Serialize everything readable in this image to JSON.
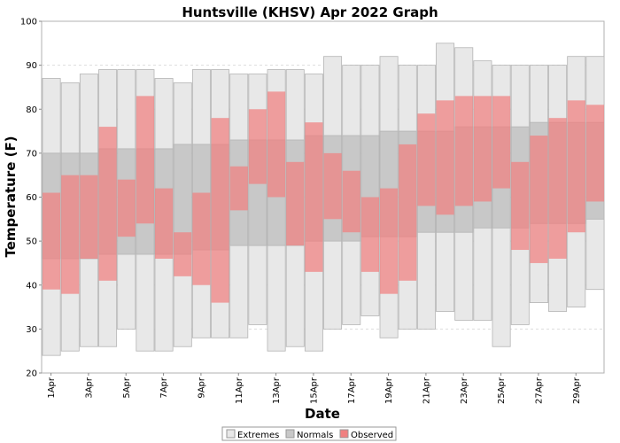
{
  "chart_data": {
    "type": "bar",
    "title": "Huntsville (KHSV) Apr 2022 Graph",
    "xlabel": "Date",
    "ylabel": "Temperature (F)",
    "ylim": [
      20,
      100
    ],
    "yticks": [
      20,
      30,
      40,
      50,
      60,
      70,
      80,
      90,
      100
    ],
    "grid": true,
    "legend_position": "bottom",
    "colors": {
      "extremes": "#e8e8e8",
      "normals": "#c8c8c8",
      "observed": "#f08080"
    },
    "dates": [
      "1Apr",
      "2Apr",
      "3Apr",
      "4Apr",
      "5Apr",
      "6Apr",
      "7Apr",
      "8Apr",
      "9Apr",
      "10Apr",
      "11Apr",
      "12Apr",
      "13Apr",
      "14Apr",
      "15Apr",
      "16Apr",
      "17Apr",
      "18Apr",
      "19Apr",
      "20Apr",
      "21Apr",
      "22Apr",
      "23Apr",
      "24Apr",
      "25Apr",
      "26Apr",
      "27Apr",
      "28Apr",
      "29Apr",
      "30Apr"
    ],
    "tick_labels": [
      "1Apr",
      "3Apr",
      "5Apr",
      "7Apr",
      "9Apr",
      "11Apr",
      "13Apr",
      "15Apr",
      "17Apr",
      "19Apr",
      "21Apr",
      "23Apr",
      "25Apr",
      "27Apr",
      "29Apr"
    ],
    "series": [
      {
        "name": "Extremes",
        "low": [
          24,
          25,
          26,
          26,
          30,
          25,
          25,
          26,
          28,
          28,
          28,
          31,
          25,
          26,
          25,
          30,
          31,
          33,
          28,
          30,
          30,
          34,
          32,
          32,
          26,
          31,
          36,
          34,
          35,
          39
        ],
        "high": [
          87,
          86,
          88,
          89,
          89,
          89,
          87,
          86,
          89,
          89,
          88,
          88,
          89,
          89,
          88,
          92,
          90,
          90,
          92,
          90,
          90,
          95,
          94,
          91,
          90,
          90,
          90,
          90,
          92,
          92
        ]
      },
      {
        "name": "Normals",
        "low": [
          46,
          46,
          46,
          47,
          47,
          47,
          47,
          47,
          48,
          48,
          49,
          49,
          49,
          49,
          50,
          50,
          50,
          51,
          51,
          51,
          52,
          52,
          52,
          53,
          53,
          53,
          54,
          54,
          54,
          55
        ],
        "high": [
          70,
          70,
          70,
          71,
          71,
          71,
          71,
          72,
          72,
          72,
          73,
          73,
          73,
          73,
          74,
          74,
          74,
          74,
          75,
          75,
          75,
          75,
          76,
          76,
          76,
          76,
          77,
          77,
          77,
          77
        ]
      },
      {
        "name": "Observed",
        "low": [
          39,
          38,
          46,
          41,
          51,
          54,
          46,
          42,
          40,
          36,
          57,
          63,
          60,
          49,
          43,
          55,
          52,
          43,
          38,
          41,
          58,
          56,
          58,
          59,
          62,
          48,
          45,
          46,
          52,
          59
        ],
        "high": [
          61,
          65,
          65,
          76,
          64,
          83,
          62,
          52,
          61,
          78,
          67,
          80,
          84,
          68,
          77,
          70,
          66,
          60,
          62,
          72,
          79,
          82,
          83,
          83,
          83,
          68,
          74,
          78,
          82,
          81
        ]
      }
    ]
  }
}
